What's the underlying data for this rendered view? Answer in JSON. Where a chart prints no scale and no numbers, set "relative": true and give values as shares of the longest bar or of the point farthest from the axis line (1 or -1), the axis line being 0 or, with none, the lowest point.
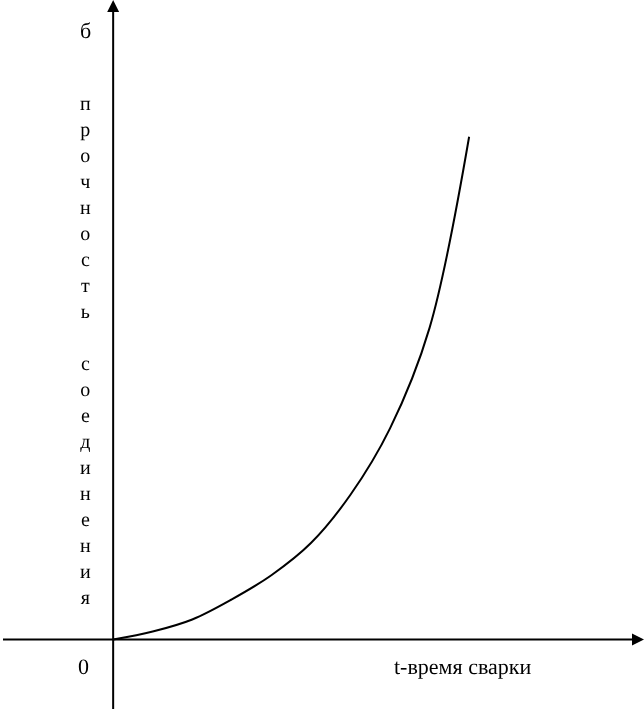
{
  "chart_data": {
    "type": "line",
    "relative": true,
    "ylabel": "прочность соединения",
    "xlabel": "t-время сварки",
    "annotations": [
      "б",
      "0"
    ],
    "categories": [
      null,
      null,
      null,
      null,
      null,
      null,
      null,
      null,
      null,
      null
    ],
    "series": [
      {
        "color": "#000000",
        "values": [
          0,
          0.016,
          0.04,
          0.08,
          0.128,
          0.192,
          0.288,
          0.42,
          0.62,
          1
        ]
      }
    ],
    "marker": "none"
  }
}
